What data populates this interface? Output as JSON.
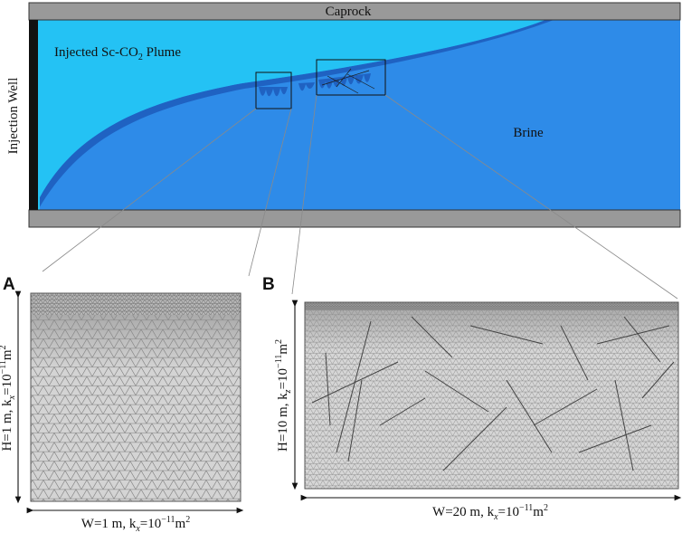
{
  "reservoir": {
    "caprock_label": "Caprock",
    "injection_well_label": "Injection Well",
    "plume_label_main": "Injected Sc-CO",
    "plume_label_sub": "2",
    "plume_label_tail": " Plume",
    "brine_label": "Brine"
  },
  "panel_a": {
    "letter": "A",
    "height_label": "H=1 m, k",
    "height_label_sub": "x",
    "height_label_tail": "=10",
    "height_label_exp": "−11",
    "height_label_unit": "m",
    "height_label_unit_exp": "2",
    "width_label": "W=1 m, k",
    "width_label_sub": "x",
    "width_label_tail": "=10",
    "width_label_exp": "−11",
    "width_label_unit": "m",
    "width_label_unit_exp": "2"
  },
  "panel_b": {
    "letter": "B",
    "height_label": "H=10 m, k",
    "height_label_sub": "z",
    "height_label_tail": "=10",
    "height_label_exp": "−11",
    "height_label_unit": "m",
    "height_label_unit_exp": "2",
    "width_label": "W=20 m, k",
    "width_label_sub": "x",
    "width_label_tail": "=10",
    "width_label_exp": "−11",
    "width_label_unit": "m",
    "width_label_unit_exp": "2"
  },
  "colors": {
    "caprock": "#999999",
    "brine": "#2e8be8",
    "plume": "#24c2f4",
    "interface": "#1f62c2",
    "well": "#111111",
    "mesh_fill": "#d4d4d4",
    "mesh_line": "#7b7b7b",
    "fracture": "#444444"
  }
}
